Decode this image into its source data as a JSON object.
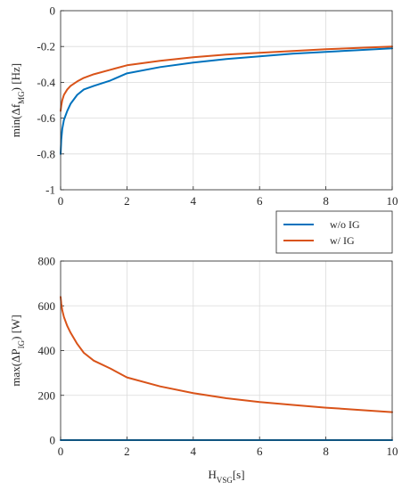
{
  "chart_data": [
    {
      "type": "line",
      "ylabel": {
        "main": "min(Δf",
        "sub": "MG",
        "tail": ") [Hz]"
      },
      "xlim": [
        0,
        10
      ],
      "ylim": [
        -1,
        0
      ],
      "xticks": [
        "0",
        "2",
        "4",
        "6",
        "8",
        "10"
      ],
      "yticks": [
        "-1",
        "-0.8",
        "-0.6",
        "-0.4",
        "-0.2",
        "0"
      ],
      "grid": true,
      "series": [
        {
          "name": "w/o IG",
          "color": "#0072BD",
          "x": [
            0,
            0.02,
            0.05,
            0.1,
            0.2,
            0.3,
            0.5,
            0.7,
            1,
            1.5,
            2,
            3,
            4,
            5,
            6,
            7,
            8,
            9,
            10
          ],
          "y": [
            -0.8,
            -0.72,
            -0.66,
            -0.61,
            -0.56,
            -0.52,
            -0.47,
            -0.44,
            -0.42,
            -0.39,
            -0.35,
            -0.315,
            -0.29,
            -0.27,
            -0.255,
            -0.24,
            -0.23,
            -0.22,
            -0.21
          ]
        },
        {
          "name": "w/ IG",
          "color": "#D95319",
          "x": [
            0,
            0.02,
            0.05,
            0.1,
            0.2,
            0.3,
            0.5,
            0.7,
            1,
            1.5,
            2,
            3,
            4,
            5,
            6,
            7,
            8,
            9,
            10
          ],
          "y": [
            -0.56,
            -0.53,
            -0.5,
            -0.47,
            -0.44,
            -0.42,
            -0.395,
            -0.375,
            -0.355,
            -0.33,
            -0.305,
            -0.28,
            -0.26,
            -0.245,
            -0.235,
            -0.225,
            -0.215,
            -0.208,
            -0.2
          ]
        }
      ]
    },
    {
      "type": "line",
      "ylabel": {
        "main": "max(ΔP",
        "sub": "IG",
        "tail": ") [W]"
      },
      "xlabel": {
        "main": "H",
        "sub": "VSG",
        "tail": "[s]"
      },
      "xlim": [
        0,
        10
      ],
      "ylim": [
        0,
        800
      ],
      "xticks": [
        "0",
        "2",
        "4",
        "6",
        "8",
        "10"
      ],
      "yticks": [
        "0",
        "200",
        "400",
        "600",
        "800"
      ],
      "grid": true,
      "series": [
        {
          "name": "w/o IG",
          "color": "#0072BD",
          "x": [
            0,
            10
          ],
          "y": [
            0,
            0
          ]
        },
        {
          "name": "w/ IG",
          "color": "#D95319",
          "x": [
            0,
            0.02,
            0.05,
            0.1,
            0.2,
            0.3,
            0.5,
            0.7,
            1,
            1.5,
            2,
            3,
            4,
            5,
            6,
            7,
            8,
            9,
            10
          ],
          "y": [
            640,
            610,
            580,
            550,
            510,
            480,
            430,
            390,
            355,
            320,
            280,
            240,
            210,
            187,
            170,
            157,
            145,
            135,
            125
          ]
        }
      ]
    }
  ],
  "legend": {
    "placement": "between-panels-right",
    "entries": [
      {
        "label": "w/o IG",
        "color": "#0072BD"
      },
      {
        "label": "w/ IG",
        "color": "#D95319"
      }
    ]
  }
}
